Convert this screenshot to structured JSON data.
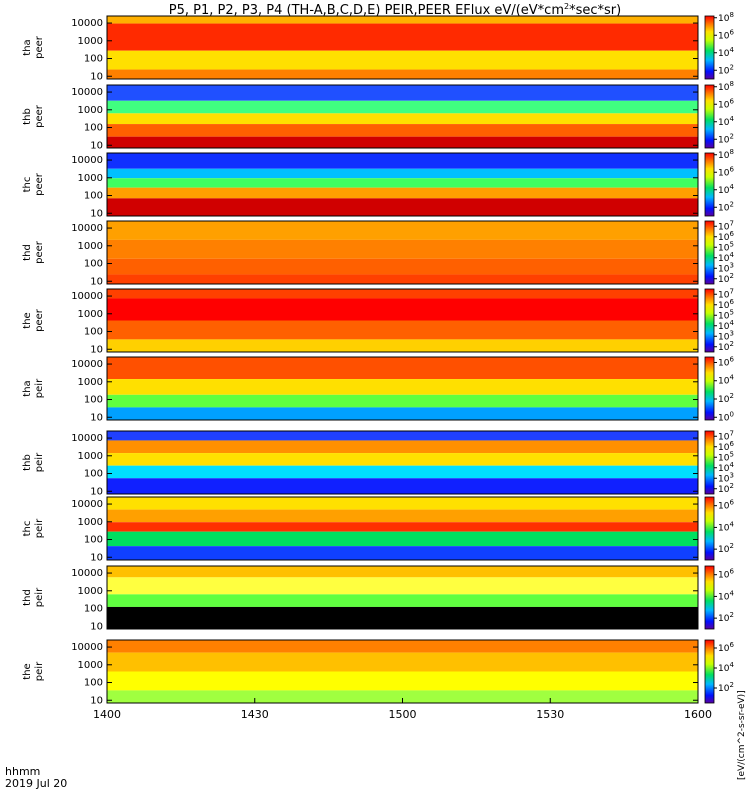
{
  "chart_data": {
    "type": "heatmap",
    "title": "P5, P1, P2, P3, P4 (TH-A,B,C,D,E) PEIR,PEER EFlux eV/(eV*cm^2*sec*sr)",
    "title_parts": {
      "main": "P5, P1, P2, P3, P4 (TH-A,B,C,D,E) PEIR,PEER EFlux eV/(eV*cm",
      "sup": "2",
      "end": "*sec*sr)"
    },
    "x_ticks": [
      "1400",
      "1430",
      "1500",
      "1530",
      "1600"
    ],
    "x_range_minutes": [
      0,
      120
    ],
    "x_label_lines": [
      "hhmm",
      "2019 Jul 20"
    ],
    "y_ticks": [
      "10",
      "100",
      "1000",
      "10000"
    ],
    "y_scale": "log",
    "y_range_eV": [
      7,
      25000
    ],
    "colorbar": {
      "scale": "log",
      "colormap": "rainbow",
      "label": "[eV/(cm^2-s-sr-eV)]"
    },
    "panels": [
      {
        "probe": "tha",
        "instrument": "peer",
        "label": [
          "tha",
          "peer"
        ],
        "cb_exps": [
          "8",
          "6",
          "4",
          "2"
        ],
        "cb_range_exp": [
          1,
          8.2
        ]
      },
      {
        "probe": "thb",
        "instrument": "peer",
        "label": [
          "thb",
          "peer"
        ],
        "cb_exps": [
          "8",
          "6",
          "4",
          "2"
        ],
        "cb_range_exp": [
          1,
          8.2
        ]
      },
      {
        "probe": "thc",
        "instrument": "peer",
        "label": [
          "thc",
          "peer"
        ],
        "cb_exps": [
          "8",
          "6",
          "4",
          "2"
        ],
        "cb_range_exp": [
          1,
          8.2
        ]
      },
      {
        "probe": "thd",
        "instrument": "peer",
        "label": [
          "thd",
          "peer"
        ],
        "cb_exps": [
          "7",
          "6",
          "5",
          "4",
          "3",
          "2"
        ],
        "cb_range_exp": [
          1.5,
          7.5
        ]
      },
      {
        "probe": "the",
        "instrument": "peer",
        "label": [
          "the",
          "peer"
        ],
        "cb_exps": [
          "7",
          "6",
          "5",
          "4",
          "3",
          "2"
        ],
        "cb_range_exp": [
          1.5,
          7.5
        ]
      },
      {
        "probe": "tha",
        "instrument": "peir",
        "label": [
          "tha",
          "peir"
        ],
        "cb_exps": [
          "6",
          "4",
          "2",
          "0"
        ],
        "cb_range_exp": [
          -0.3,
          6.6
        ]
      },
      {
        "probe": "thb",
        "instrument": "peir",
        "label": [
          "thb",
          "peir"
        ],
        "cb_exps": [
          "7",
          "6",
          "5",
          "4",
          "3",
          "2"
        ],
        "cb_range_exp": [
          1.5,
          7.5
        ]
      },
      {
        "probe": "thc",
        "instrument": "peir",
        "label": [
          "thc",
          "peir"
        ],
        "cb_exps": [
          "6",
          "4",
          "2"
        ],
        "cb_range_exp": [
          1,
          6.8
        ]
      },
      {
        "probe": "thd",
        "instrument": "peir",
        "label": [
          "thd",
          "peir"
        ],
        "cb_exps": [
          "6",
          "4",
          "2"
        ],
        "cb_range_exp": [
          1,
          6.8
        ]
      },
      {
        "probe": "the",
        "instrument": "peir",
        "label": [
          "the",
          "peir"
        ],
        "cb_exps": [
          "6",
          "4",
          "2"
        ],
        "cb_range_exp": [
          0.5,
          6.8
        ]
      }
    ]
  }
}
